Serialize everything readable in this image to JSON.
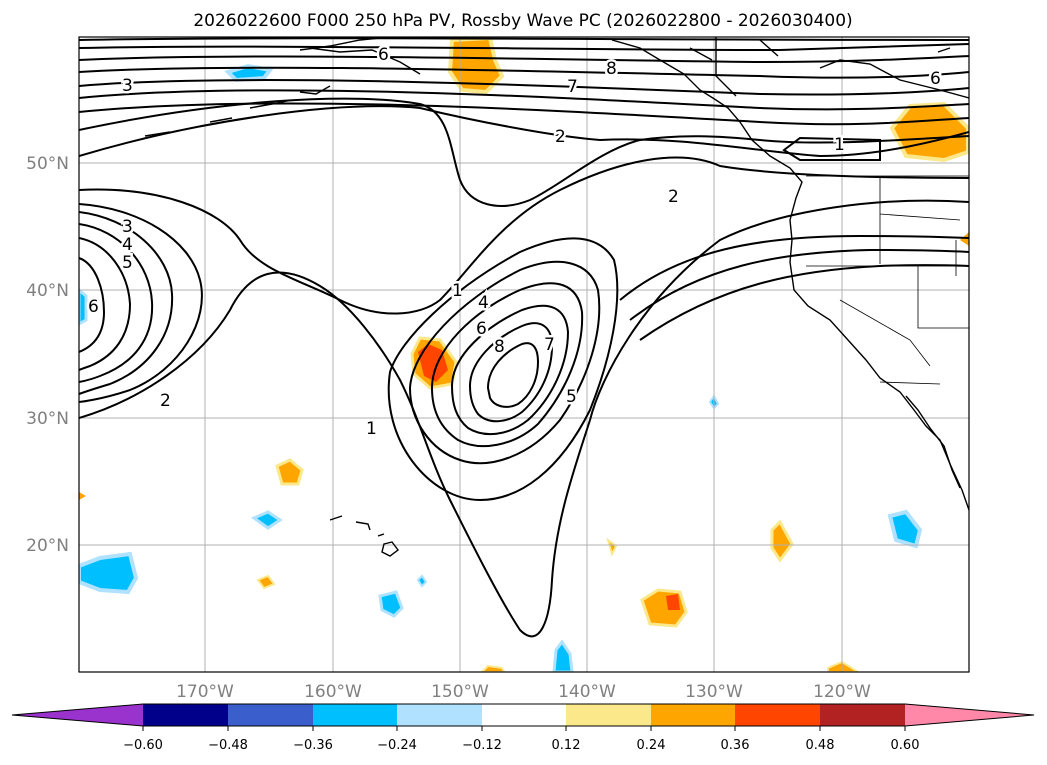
{
  "title": "2026022600 F000 250 hPa PV, Rossby Wave PC (2026022800 - 2026030400)",
  "lat_labels": [
    "50°N",
    "40°N",
    "30°N",
    "20°N"
  ],
  "lon_labels": [
    "170°W",
    "160°W",
    "150°W",
    "140°W",
    "130°W",
    "120°W"
  ],
  "contour_labels": [
    "3",
    "7",
    "8",
    "6",
    "2",
    "1",
    "3",
    "4",
    "5",
    "6",
    "2",
    "2",
    "1",
    "4",
    "6",
    "8",
    "7",
    "5",
    "1",
    "6"
  ],
  "colorbar": {
    "tick_labels": [
      "−0.60",
      "−0.48",
      "−0.36",
      "−0.24",
      "−0.12",
      "0.12",
      "0.24",
      "0.36",
      "0.48",
      "0.60"
    ],
    "colors": [
      "#9a32cd",
      "#00008b",
      "#3a5fcd",
      "#00bfff",
      "#b0e2ff",
      "#ffffff",
      "#fbe88a",
      "#ffa500",
      "#ff4500",
      "#b22222",
      "#ff87a8"
    ]
  }
}
